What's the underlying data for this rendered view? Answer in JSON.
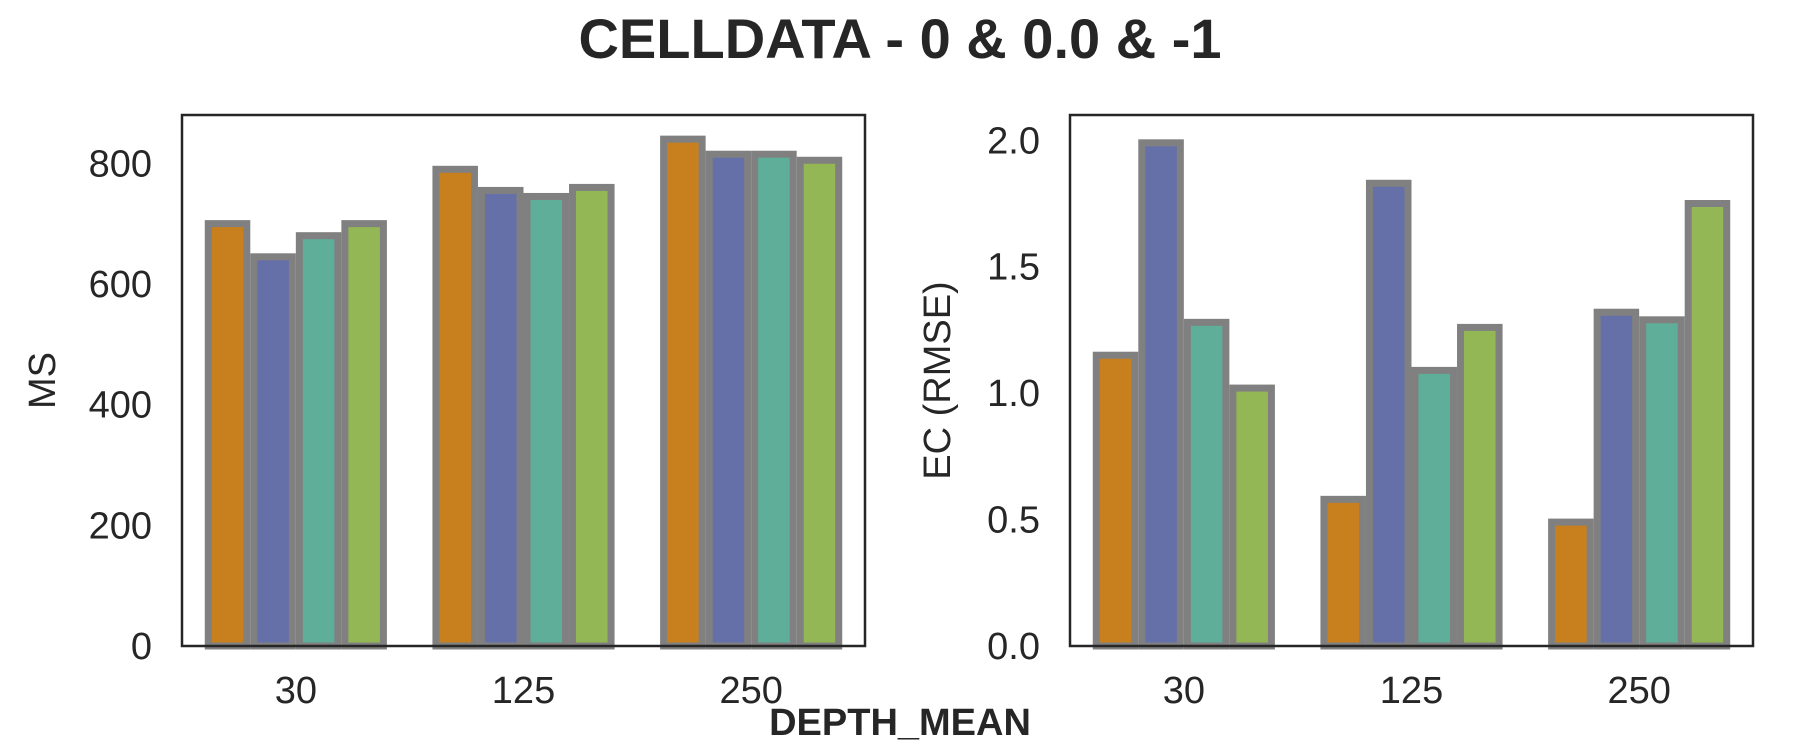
{
  "figure": {
    "title": "CELLDATA - 0 & 0.0 & -1",
    "xlabel": "DEPTH_MEAN"
  },
  "chart_data": [
    {
      "type": "bar",
      "categories": [
        "30",
        "125",
        "250"
      ],
      "ylabel": "MS",
      "ylim": [
        0,
        880
      ],
      "yticks": [
        0,
        200,
        400,
        600,
        800
      ],
      "ytick_labels": [
        "0",
        "200",
        "400",
        "600",
        "800"
      ],
      "grid": false,
      "series": [
        {
          "color": "#c87f1e",
          "values": [
            700,
            790,
            840
          ]
        },
        {
          "color": "#6670a8",
          "values": [
            645,
            755,
            815
          ]
        },
        {
          "color": "#5eae9a",
          "values": [
            680,
            745,
            815
          ]
        },
        {
          "color": "#92b754",
          "values": [
            700,
            760,
            805
          ]
        }
      ]
    },
    {
      "type": "bar",
      "categories": [
        "30",
        "125",
        "250"
      ],
      "ylabel": "EC (RMSE)",
      "ylim": [
        0,
        2.1
      ],
      "yticks": [
        0,
        0.5,
        1.0,
        1.5,
        2.0
      ],
      "ytick_labels": [
        "0.0",
        "0.5",
        "1.0",
        "1.5",
        "2.0"
      ],
      "grid": false,
      "series": [
        {
          "color": "#c87f1e",
          "values": [
            1.15,
            0.58,
            0.49
          ]
        },
        {
          "color": "#6670a8",
          "values": [
            1.99,
            1.83,
            1.32
          ]
        },
        {
          "color": "#5eae9a",
          "values": [
            1.28,
            1.09,
            1.29
          ]
        },
        {
          "color": "#92b754",
          "values": [
            1.02,
            1.26,
            1.75
          ]
        }
      ]
    }
  ],
  "style": {
    "bar_edge_color": "#808080",
    "axis_color": "#262626"
  }
}
